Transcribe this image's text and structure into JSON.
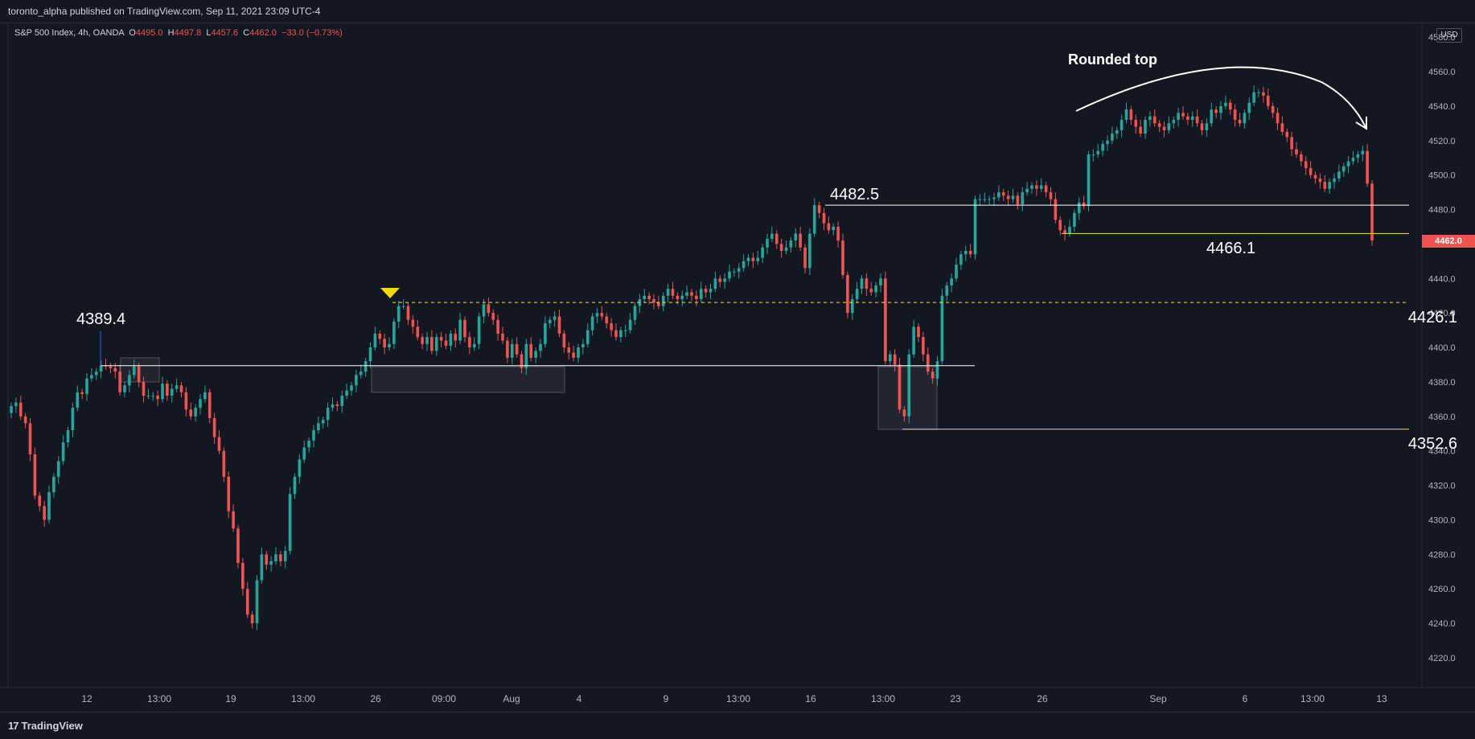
{
  "header": {
    "publish_text": "toronto_alpha published on TradingView.com, Sep 11, 2021 23:09 UTC-4"
  },
  "legend": {
    "symbol": "S&P 500 Index, 4h, OANDA",
    "o_label": "O",
    "o": "4495.0",
    "h_label": "H",
    "h": "4497.8",
    "l_label": "L",
    "l": "4457.6",
    "c_label": "C",
    "c": "4462.0",
    "change": "−33.0 (−0.73%)"
  },
  "currency_label": "USD",
  "last_price_tag": "4462.0",
  "footer": {
    "brand_mark": "17",
    "brand": "TradingView"
  },
  "colors": {
    "bg": "#131722",
    "up": "#26a69a",
    "down": "#ef5350",
    "hline": "#ffffff",
    "level": "#f0e442",
    "grid_text": "#b2b5be"
  },
  "chart_data": {
    "type": "candlestick",
    "title": "",
    "y_axis": {
      "ticks": [
        4220,
        4240,
        4260,
        4280,
        4300,
        4320,
        4340,
        4360,
        4380,
        4400,
        4420,
        4440,
        4460,
        4480,
        4500,
        4520,
        4540,
        4560,
        4580
      ],
      "labels": [
        "4220.0",
        "4240.0",
        "4260.0",
        "4280.0",
        "4300.0",
        "4320.0",
        "4340.0",
        "4360.0",
        "4380.0",
        "4400.0",
        "4420.0",
        "4440.0",
        "4460.0",
        "4480.0",
        "4500.0",
        "4520.0",
        "4540.0",
        "4560.0",
        "4580.0"
      ],
      "range": [
        4205,
        4590
      ]
    },
    "x_axis": {
      "labels": [
        "12",
        "13:00",
        "19",
        "13:00",
        "26",
        "09:00",
        "Aug",
        "4",
        "9",
        "13:00",
        "16",
        "13:00",
        "23",
        "26",
        "Sep",
        "6",
        "13:00",
        "13"
      ]
    },
    "closes": [
      4366,
      4368,
      4360,
      4356,
      4338,
      4314,
      4308,
      4300,
      4316,
      4325,
      4334,
      4345,
      4352,
      4365,
      4374,
      4373,
      4382,
      4384,
      4386,
      4389.4,
      4389,
      4388,
      4386,
      4374,
      4378,
      4384,
      4389,
      4380,
      4372,
      4372,
      4372,
      4370,
      4379,
      4372,
      4376,
      4378,
      4374,
      4364,
      4360,
      4365,
      4370,
      4374,
      4359,
      4348,
      4340,
      4325,
      4305,
      4295,
      4275,
      4260,
      4245,
      4240,
      4265,
      4280,
      4274,
      4276,
      4280,
      4276,
      4282,
      4315,
      4325,
      4335,
      4342,
      4346,
      4352,
      4356,
      4358,
      4365,
      4367,
      4366,
      4372,
      4375,
      4378,
      4384,
      4386,
      4392,
      4400,
      4408,
      4405,
      4400,
      4402,
      4415,
      4424,
      4424,
      4416,
      4412,
      4406,
      4402,
      4406,
      4398,
      4406,
      4404,
      4401,
      4408,
      4404,
      4416,
      4406,
      4400,
      4402,
      4418,
      4425,
      4420,
      4416,
      4408,
      4404,
      4394,
      4402,
      4396,
      4388,
      4402,
      4394,
      4398,
      4402,
      4414,
      4416,
      4418,
      4408,
      4400,
      4397,
      4394,
      4400,
      4402,
      4410,
      4418,
      4420,
      4418,
      4414,
      4410,
      4406,
      4410,
      4410,
      4416,
      4424,
      4428,
      4430,
      4428,
      4426,
      4424,
      4430,
      4434,
      4430,
      4428,
      4430,
      4432,
      4430,
      4428,
      4434,
      4432,
      4434,
      4440,
      4438,
      4440,
      4444,
      4444,
      4446,
      4450,
      4452,
      4450,
      4452,
      4458,
      4463,
      4466,
      4460,
      4456,
      4458,
      4462,
      4466,
      4458,
      4446,
      4466,
      4482.5,
      4478,
      4472,
      4468,
      4470,
      4462,
      4442,
      4420,
      4428,
      4434,
      4440,
      4434,
      4432,
      4436,
      4440,
      4392,
      4396,
      4390,
      4364,
      4360,
      4396,
      4412,
      4406,
      4396,
      4386,
      4382,
      4392,
      4430,
      4436,
      4440,
      4448,
      4454,
      4456,
      4454,
      4486,
      4486,
      4486,
      4486,
      4487,
      4490,
      4488,
      4486,
      4488,
      4483,
      4490,
      4492,
      4494,
      4492,
      4494,
      4490,
      4486,
      4474,
      4468,
      4466.1,
      4470,
      4478,
      4484,
      4482,
      4512,
      4512,
      4514,
      4518,
      4520,
      4524,
      4526,
      4532,
      4538,
      4532,
      4528,
      4524,
      4532,
      4534,
      4530,
      4528,
      4526,
      4530,
      4532,
      4536,
      4534,
      4532,
      4534,
      4530,
      4526,
      4530,
      4538,
      4536,
      4540,
      4542,
      4538,
      4532,
      4530,
      4536,
      4542,
      4548,
      4548,
      4546,
      4540,
      4536,
      4530,
      4525,
      4522,
      4515,
      4512,
      4508,
      4504,
      4500,
      4498,
      4496,
      4492,
      4496,
      4498,
      4502,
      4505,
      4508,
      4510,
      4512,
      4514,
      4495,
      4462
    ],
    "annotations": {
      "title_note": "Rounded top",
      "levels": [
        {
          "label": "4482.5",
          "value": 4482.5,
          "color": "white"
        },
        {
          "label": "4466.1",
          "value": 4466.1,
          "color": "yellow"
        },
        {
          "label": "4426.1",
          "value": 4426.1,
          "color": "yellow-dashed"
        },
        {
          "label": "4389.4",
          "value": 4389.4,
          "color": "white"
        },
        {
          "label": "4352.6",
          "value": 4352.6,
          "color": "yellow"
        }
      ]
    },
    "grid": false,
    "legend_position": "top-left"
  }
}
